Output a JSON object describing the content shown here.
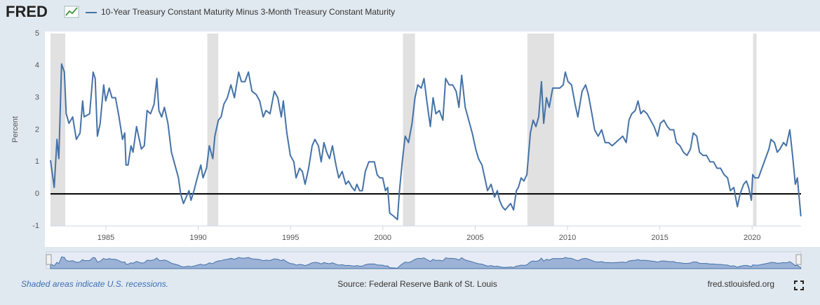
{
  "logo": "FRED",
  "chart_data": {
    "type": "line",
    "y_label": "Percent",
    "x": [
      1982.0,
      1982.2,
      1982.35,
      1982.45,
      1982.6,
      1982.75,
      1982.85,
      1983.0,
      1983.2,
      1983.4,
      1983.6,
      1983.74,
      1983.82,
      1984.12,
      1984.31,
      1984.42,
      1984.54,
      1984.69,
      1984.88,
      1984.99,
      1985.18,
      1985.33,
      1985.52,
      1985.71,
      1985.9,
      1986.02,
      1986.09,
      1986.2,
      1986.36,
      1986.47,
      1986.66,
      1986.77,
      1986.92,
      1987.08,
      1987.23,
      1987.42,
      1987.61,
      1987.76,
      1987.87,
      1988.02,
      1988.17,
      1988.36,
      1988.55,
      1988.74,
      1988.93,
      1989.05,
      1989.2,
      1989.35,
      1989.5,
      1989.61,
      1989.77,
      1989.95,
      1990.14,
      1990.26,
      1990.45,
      1990.6,
      1990.79,
      1990.9,
      1991.09,
      1991.24,
      1991.39,
      1991.58,
      1991.77,
      1991.96,
      1992.19,
      1992.34,
      1992.53,
      1992.72,
      1992.91,
      1993.14,
      1993.33,
      1993.52,
      1993.67,
      1993.89,
      1994.12,
      1994.31,
      1994.5,
      1994.61,
      1994.8,
      1994.99,
      1995.18,
      1995.3,
      1995.49,
      1995.64,
      1995.79,
      1995.98,
      1996.17,
      1996.32,
      1996.51,
      1996.66,
      1996.81,
      1996.96,
      1997.11,
      1997.27,
      1997.46,
      1997.61,
      1997.8,
      1997.99,
      1998.14,
      1998.33,
      1998.48,
      1998.59,
      1998.74,
      1998.89,
      1999.05,
      1999.24,
      1999.39,
      1999.54,
      1999.69,
      1999.84,
      1999.99,
      2000.14,
      2000.26,
      2000.37,
      2000.6,
      2000.79,
      2000.9,
      2001.05,
      2001.21,
      2001.39,
      2001.58,
      2001.74,
      2001.89,
      2002.08,
      2002.23,
      2002.38,
      2002.57,
      2002.72,
      2002.87,
      2003.06,
      2003.25,
      2003.4,
      2003.59,
      2003.78,
      2003.97,
      2004.12,
      2004.27,
      2004.46,
      2004.65,
      2004.84,
      2005.03,
      2005.18,
      2005.37,
      2005.52,
      2005.67,
      2005.86,
      2006.05,
      2006.2,
      2006.32,
      2006.47,
      2006.62,
      2006.77,
      2006.92,
      2007.08,
      2007.23,
      2007.34,
      2007.49,
      2007.64,
      2007.8,
      2007.99,
      2008.14,
      2008.29,
      2008.44,
      2008.59,
      2008.71,
      2008.86,
      2009.01,
      2009.2,
      2009.39,
      2009.58,
      2009.77,
      2009.88,
      2010.03,
      2010.22,
      2010.41,
      2010.56,
      2010.79,
      2010.98,
      2011.13,
      2011.32,
      2011.47,
      2011.66,
      2011.85,
      2012.04,
      2012.23,
      2012.42,
      2012.61,
      2012.8,
      2012.99,
      2013.18,
      2013.33,
      2013.48,
      2013.67,
      2013.82,
      2013.97,
      2014.12,
      2014.31,
      2014.5,
      2014.69,
      2014.88,
      2015.03,
      2015.22,
      2015.41,
      2015.56,
      2015.75,
      2015.9,
      2016.09,
      2016.28,
      2016.47,
      2016.66,
      2016.81,
      2017.0,
      2017.15,
      2017.34,
      2017.53,
      2017.72,
      2017.91,
      2018.1,
      2018.29,
      2018.48,
      2018.67,
      2018.82,
      2019.01,
      2019.2,
      2019.35,
      2019.54,
      2019.69,
      2019.81,
      2019.96,
      2020.03,
      2020.15,
      2020.34,
      2020.53,
      2020.72,
      2020.91,
      2021.02,
      2021.21,
      2021.36,
      2021.51,
      2021.7,
      2021.85,
      2022.04,
      2022.19,
      2022.34,
      2022.45,
      2022.64
    ],
    "series": [
      {
        "name": "10-Year Treasury Constant Maturity Minus 3-Month Treasury Constant Maturity",
        "color": "#4572a7",
        "values": [
          1.05,
          0.2,
          1.7,
          1.1,
          4.05,
          3.8,
          2.5,
          2.2,
          2.4,
          1.7,
          1.9,
          2.9,
          2.4,
          2.5,
          3.8,
          3.6,
          1.8,
          2.2,
          3.4,
          2.9,
          3.3,
          3.0,
          3.0,
          2.4,
          1.7,
          1.9,
          0.9,
          0.9,
          1.5,
          1.3,
          2.1,
          1.8,
          1.4,
          1.5,
          2.6,
          2.5,
          2.8,
          3.6,
          2.6,
          2.4,
          2.7,
          2.2,
          1.3,
          0.9,
          0.5,
          0.0,
          -0.3,
          -0.1,
          0.1,
          -0.2,
          0.1,
          0.5,
          0.9,
          0.5,
          0.8,
          1.5,
          1.1,
          1.8,
          2.3,
          2.4,
          2.8,
          3.0,
          3.4,
          3.0,
          3.8,
          3.5,
          3.5,
          3.8,
          3.2,
          3.1,
          2.9,
          2.4,
          2.6,
          2.5,
          3.2,
          3.0,
          2.4,
          2.9,
          1.9,
          1.2,
          1.0,
          0.5,
          0.8,
          0.7,
          0.3,
          0.8,
          1.5,
          1.7,
          1.5,
          1.0,
          1.6,
          1.3,
          1.1,
          1.5,
          0.9,
          0.5,
          0.7,
          0.3,
          0.4,
          0.2,
          0.1,
          0.3,
          0.1,
          0.1,
          0.7,
          1.0,
          1.0,
          1.0,
          0.6,
          0.5,
          0.5,
          0.1,
          0.2,
          -0.6,
          -0.7,
          -0.8,
          0.1,
          1.0,
          1.8,
          1.6,
          2.2,
          3.0,
          3.4,
          3.3,
          3.6,
          2.9,
          2.1,
          3.0,
          2.5,
          2.6,
          2.3,
          3.6,
          3.4,
          3.4,
          3.2,
          2.7,
          3.7,
          2.7,
          2.3,
          1.9,
          1.4,
          1.1,
          0.9,
          0.5,
          0.1,
          0.3,
          -0.1,
          0.1,
          -0.2,
          -0.4,
          -0.5,
          -0.4,
          -0.3,
          -0.5,
          0.1,
          0.2,
          0.5,
          0.4,
          0.6,
          1.9,
          2.3,
          2.1,
          2.4,
          3.5,
          2.2,
          3.0,
          2.7,
          3.3,
          3.3,
          3.3,
          3.4,
          3.8,
          3.5,
          3.4,
          2.8,
          2.4,
          3.2,
          3.4,
          3.1,
          2.5,
          2.0,
          1.8,
          2.0,
          1.6,
          1.6,
          1.5,
          1.6,
          1.7,
          1.8,
          1.6,
          2.3,
          2.5,
          2.6,
          2.9,
          2.5,
          2.6,
          2.5,
          2.3,
          2.1,
          1.8,
          2.2,
          2.3,
          2.1,
          2.0,
          2.0,
          1.6,
          1.5,
          1.3,
          1.2,
          1.4,
          1.9,
          1.8,
          1.3,
          1.2,
          1.2,
          1.0,
          1.0,
          0.8,
          0.8,
          0.6,
          0.5,
          0.1,
          0.2,
          -0.4,
          0.0,
          0.3,
          0.4,
          0.2,
          -0.2,
          0.6,
          0.5,
          0.5,
          0.8,
          1.1,
          1.4,
          1.7,
          1.6,
          1.3,
          1.4,
          1.6,
          1.5,
          2.0,
          1.2,
          0.3,
          0.5,
          -0.7
        ]
      }
    ],
    "recessions": [
      [
        1982.0,
        1982.8
      ],
      [
        1990.49,
        1991.09
      ],
      [
        2001.09,
        2001.74
      ],
      [
        2007.83,
        2009.27
      ],
      [
        2020.05,
        2020.24
      ]
    ],
    "recession_color": "#e1e1e1",
    "xlim": [
      1982.0,
      2022.65
    ],
    "xticks": [
      1985,
      1990,
      1995,
      2000,
      2005,
      2010,
      2015,
      2020
    ],
    "ylim": [
      -1,
      5
    ],
    "yticks": [
      -1,
      0,
      1,
      2,
      3,
      4,
      5
    ],
    "grid": false
  },
  "footer": {
    "note": "Shaded areas indicate U.S. recessions.",
    "source": "Source: Federal Reserve Bank of St. Louis",
    "site": "fred.stlouisfed.org"
  }
}
